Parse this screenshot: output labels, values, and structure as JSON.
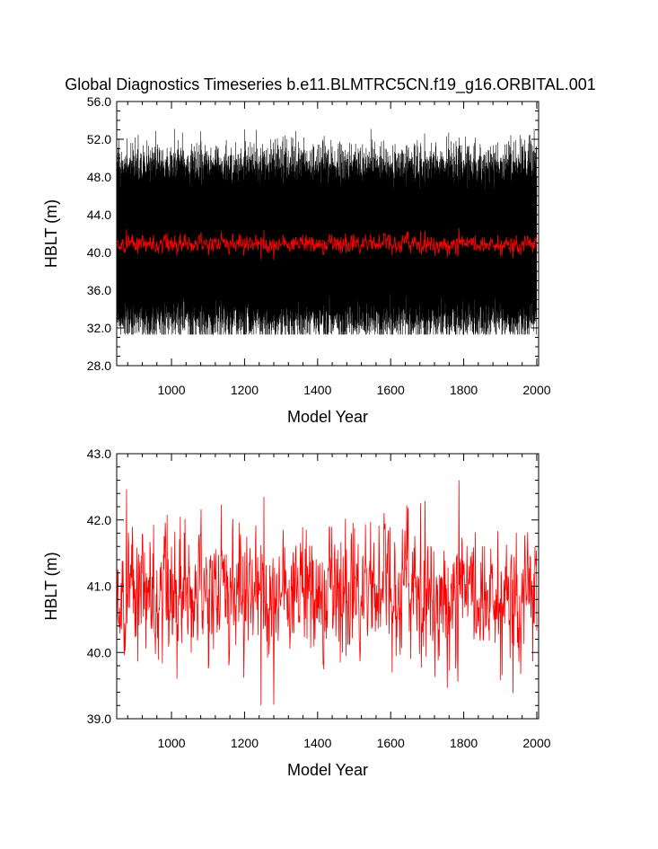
{
  "figure_title": "Global Diagnostics Timeseries b.e11.BLMTRC5CN.f19_g16.ORBITAL.001",
  "colors": {
    "monthly": "#000000",
    "annual": "#ff0000",
    "axes": "#000000"
  },
  "chart_data": [
    {
      "type": "line",
      "xlabel": "Model Year",
      "ylabel": "HBLT (m)",
      "xlim": [
        850,
        2005
      ],
      "ylim": [
        28.0,
        56.0
      ],
      "xticks": [
        1000,
        1200,
        1400,
        1600,
        1800,
        2000
      ],
      "yticks": [
        "28.0",
        "32.0",
        "36.0",
        "40.0",
        "44.0",
        "48.0",
        "52.0",
        "56.0"
      ],
      "x_minor_step": 40,
      "y_minor_step": 1,
      "grid": false,
      "series": [
        {
          "color": "#000000",
          "mean": 41.0,
          "amplitude": 8.0,
          "noise": 1.5,
          "min": 31.3,
          "max": 53.1,
          "step": 0.0833
        },
        {
          "color": "#ff0000",
          "mean": 40.9,
          "sd": 0.45,
          "min": 39.2,
          "max": 42.6,
          "step": 1
        }
      ]
    },
    {
      "type": "line",
      "xlabel": "Model Year",
      "ylabel": "HBLT (m)",
      "xlim": [
        850,
        2005
      ],
      "ylim": [
        39.0,
        43.0
      ],
      "xticks": [
        1000,
        1200,
        1400,
        1600,
        1800,
        2000
      ],
      "yticks": [
        "39.0",
        "40.0",
        "41.0",
        "42.0",
        "43.0"
      ],
      "x_minor_step": 40,
      "y_minor_step": 0.2,
      "grid": false,
      "series": [
        {
          "color": "#ff0000",
          "mean": 40.9,
          "sd": 0.45,
          "min": 39.2,
          "max": 42.6,
          "step": 1
        }
      ]
    }
  ]
}
